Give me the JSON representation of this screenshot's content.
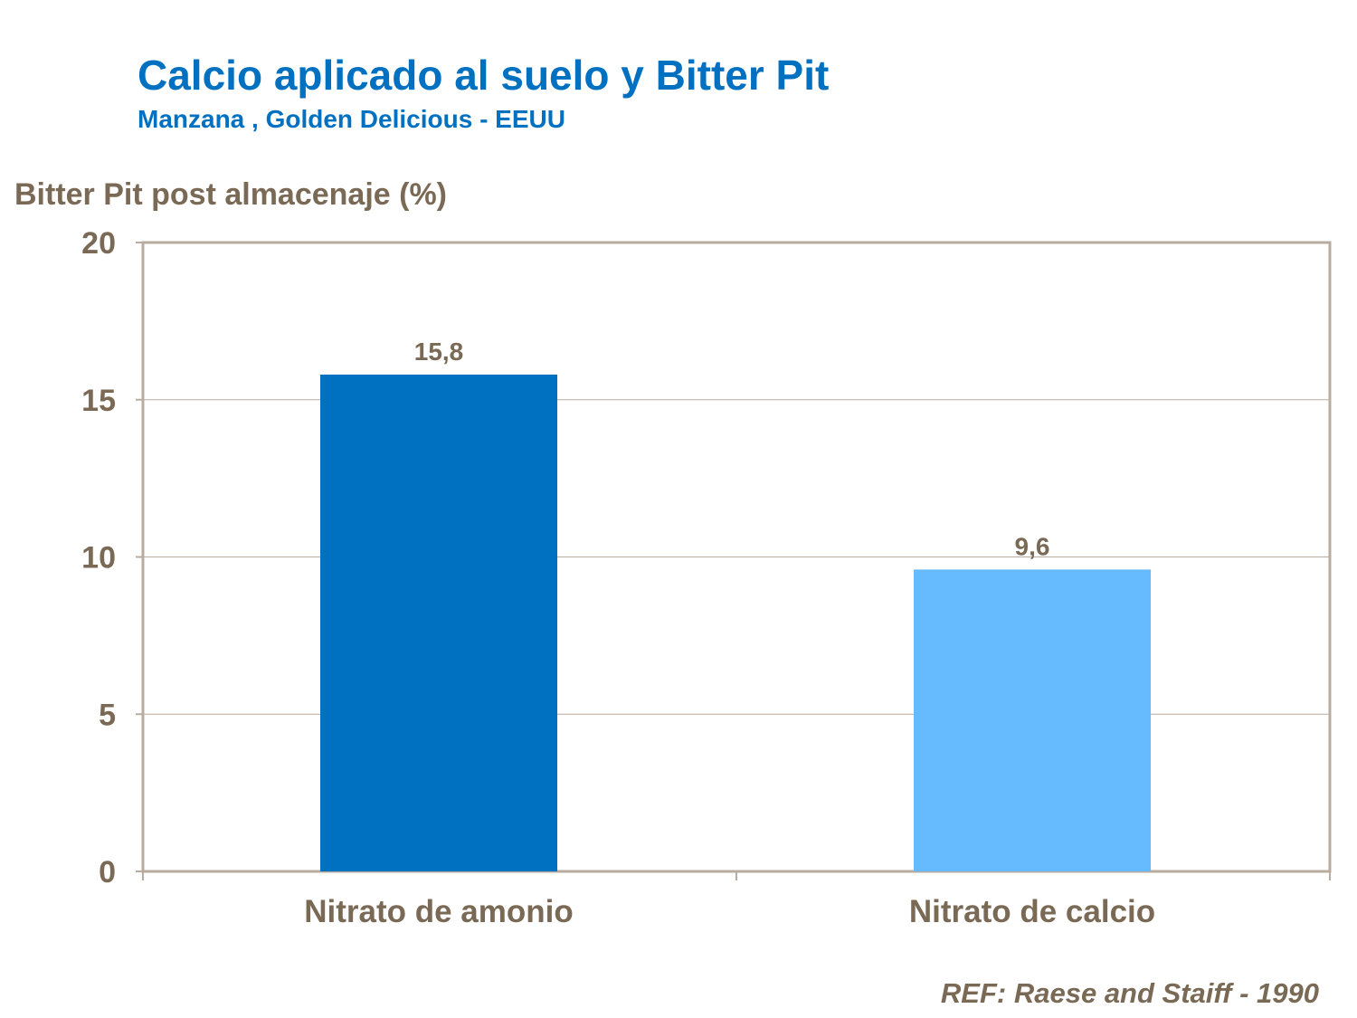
{
  "title": "Calcio aplicado al suelo y Bitter Pit",
  "subtitle": "Manzana , Golden Delicious  - EEUU",
  "reference": "REF: Raese and Staiff - 1990",
  "chart_data": {
    "type": "bar",
    "title": "Calcio aplicado al suelo y Bitter Pit",
    "subtitle": "Manzana , Golden Delicious  - EEUU",
    "xlabel": "",
    "ylabel": "Bitter Pit post almacenaje (%)",
    "categories": [
      "Nitrato de amonio",
      "Nitrato de calcio"
    ],
    "values": [
      15.8,
      9.6
    ],
    "data_labels": [
      "15,8",
      "9,6"
    ],
    "bar_colors": [
      "#0070c0",
      "#66bbff"
    ],
    "ylim": [
      0,
      20
    ],
    "yticks": [
      0,
      5,
      10,
      15,
      20
    ],
    "grid": true,
    "legend": "none"
  }
}
